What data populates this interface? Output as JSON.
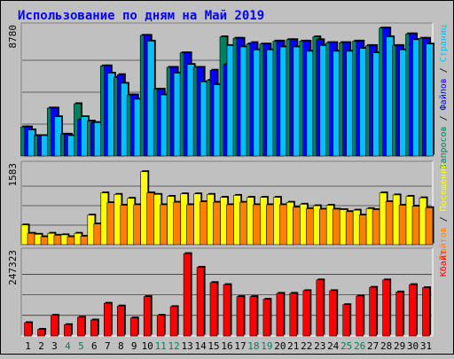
{
  "colors": {
    "background": "#c0c0c0",
    "panel": "#c0c0c0",
    "title": "#0000ff",
    "hits": "#00805c",
    "files": "#0000ff",
    "pages": "#00c0ff",
    "visits": "#ffff00",
    "sites": "#ff8000",
    "kbytes": "#ff0000",
    "weekend": "#00805c",
    "text": "#000000"
  },
  "chart_data": {
    "type": "bar",
    "title": "Использование по дням на Май 2019",
    "categories": [
      "1",
      "2",
      "3",
      "4",
      "5",
      "6",
      "7",
      "8",
      "9",
      "10",
      "11",
      "12",
      "13",
      "14",
      "15",
      "16",
      "17",
      "18",
      "19",
      "20",
      "21",
      "22",
      "23",
      "24",
      "25",
      "26",
      "27",
      "28",
      "29",
      "30",
      "31"
    ],
    "weekend_days": [
      "4",
      "5",
      "11",
      "12",
      "18",
      "19",
      "25",
      "26"
    ],
    "panels": [
      {
        "id": "requests",
        "ymax_label": "8780",
        "ymax": 8780,
        "legend": [
          {
            "text": "Запросов",
            "color_key": "hits"
          },
          {
            "text": " / ",
            "color_key": "text"
          },
          {
            "text": "Файлов",
            "color_key": "files"
          },
          {
            "text": " / ",
            "color_key": "text"
          },
          {
            "text": "Страниц",
            "color_key": "pages"
          }
        ],
        "series": [
          {
            "name": "Запросов",
            "color_key": "hits",
            "values": [
              2000,
              1400,
              3300,
              1500,
              3600,
              2400,
              6200,
              5400,
              4200,
              8300,
              4600,
              6100,
              7100,
              6100,
              5200,
              8200,
              8100,
              7700,
              7700,
              7900,
              8000,
              7900,
              8200,
              7800,
              7800,
              7900,
              7600,
              8800,
              7600,
              8400,
              8100
            ]
          },
          {
            "name": "Файлов",
            "color_key": "files",
            "values": [
              2000,
              1400,
              3300,
              1500,
              2500,
              2300,
              6200,
              5600,
              4200,
              8300,
              4600,
              6100,
              7100,
              6100,
              5900,
              6300,
              8100,
              7800,
              7700,
              7900,
              8000,
              7900,
              8000,
              7800,
              7800,
              7900,
              7600,
              8800,
              7600,
              8400,
              8100
            ]
          },
          {
            "name": "Страниц",
            "color_key": "pages",
            "values": [
              1800,
              1400,
              2700,
              1400,
              2700,
              2300,
              5700,
              5000,
              3900,
              7900,
              4200,
              5700,
              6300,
              5100,
              4900,
              7600,
              7500,
              7300,
              7300,
              7500,
              7500,
              7200,
              7600,
              7200,
              7200,
              7400,
              7100,
              8200,
              7300,
              8000,
              7700
            ]
          }
        ]
      },
      {
        "id": "visits",
        "ymax_label": "1583",
        "ymax": 1583,
        "legend": [
          {
            "text": "Сайтов",
            "color_key": "sites"
          },
          {
            "text": " / ",
            "color_key": "text"
          },
          {
            "text": "Посещений",
            "color_key": "visits"
          }
        ],
        "series": [
          {
            "name": "Посещений",
            "color_key": "visits",
            "values": [
              400,
              210,
              230,
              200,
              230,
              600,
              1050,
              1020,
              940,
              1480,
              1020,
              980,
              1030,
              1030,
              1020,
              960,
              1000,
              960,
              960,
              960,
              860,
              820,
              790,
              800,
              710,
              700,
              730,
              1050,
              1010,
              980,
              950
            ]
          },
          {
            "name": "Сайтов",
            "color_key": "sites",
            "values": [
              230,
              160,
              190,
              160,
              170,
              420,
              850,
              800,
              810,
              1050,
              810,
              860,
              810,
              870,
              860,
              810,
              860,
              810,
              810,
              810,
              760,
              730,
              720,
              720,
              670,
              600,
              710,
              870,
              800,
              780,
              750
            ]
          }
        ]
      },
      {
        "id": "traffic",
        "ymax_label": "247323",
        "ymax": 247323,
        "legend": [
          {
            "text": "Кбайт",
            "color_key": "kbytes"
          }
        ],
        "series": [
          {
            "name": "Кбайт",
            "color_key": "kbytes",
            "values": [
              40000,
              20000,
              62000,
              34000,
              56000,
              48000,
              98000,
              90000,
              54000,
              118000,
              62000,
              88000,
              247000,
              206000,
              160000,
              154000,
              118000,
              118000,
              110000,
              128000,
              128000,
              136000,
              168000,
              136000,
              94000,
              120000,
              146000,
              168000,
              132000,
              154000,
              145000
            ]
          }
        ]
      }
    ]
  }
}
